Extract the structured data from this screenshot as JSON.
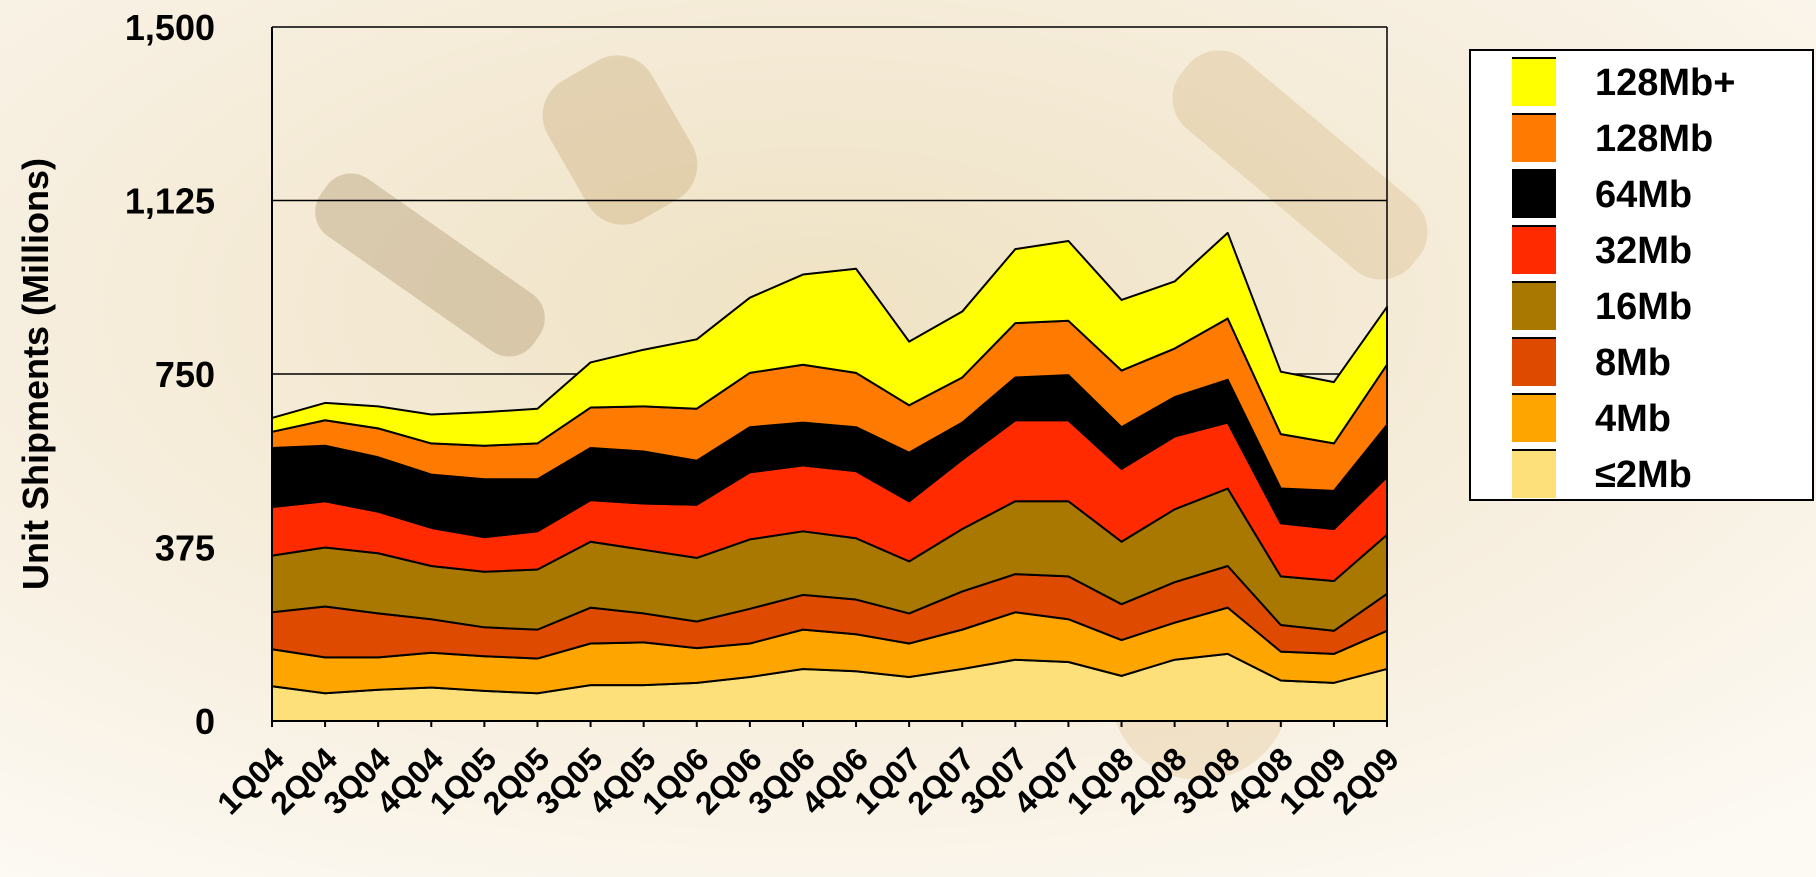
{
  "chart_data": {
    "type": "stacked_area",
    "y_label": "Unit Shipments (Millions)",
    "categories": [
      "1Q04",
      "2Q04",
      "3Q04",
      "4Q04",
      "1Q05",
      "2Q05",
      "3Q05",
      "4Q05",
      "1Q06",
      "2Q06",
      "3Q06",
      "4Q06",
      "1Q07",
      "2Q07",
      "3Q07",
      "4Q07",
      "1Q08",
      "2Q08",
      "3Q08",
      "4Q08",
      "1Q09",
      "2Q09"
    ],
    "series": [
      {
        "name": "≤2Mb",
        "color": "#fde07a",
        "values": [
          75,
          60,
          67.5,
          72.5,
          65,
          60,
          77.5,
          77.5,
          82.5,
          95,
          112.5,
          107.5,
          95,
          112.5,
          132.5,
          127.5,
          97.5,
          132.5,
          145,
          87.5,
          82.5,
          112.5
        ]
      },
      {
        "name": "4Mb",
        "color": "#ffa500",
        "values": [
          80,
          77.5,
          70,
          75,
          75,
          75,
          90,
          92.5,
          75,
          72.5,
          85,
          80,
          72.5,
          85,
          102.5,
          92.5,
          77.5,
          80,
          100,
          62.5,
          62.5,
          82.5
        ]
      },
      {
        "name": "8Mb",
        "color": "#dd4a00",
        "values": [
          80,
          110,
          95,
          72.5,
          62.5,
          62.5,
          77.5,
          62.5,
          57.5,
          75,
          75,
          75,
          65,
          82.5,
          82.5,
          92.5,
          77.5,
          87.5,
          90,
          57.5,
          50,
          80
        ]
      },
      {
        "name": "16Mb",
        "color": "#a87800",
        "values": [
          122.5,
          127.5,
          130,
          115,
          120,
          130,
          142.5,
          137.5,
          137.5,
          150,
          137.5,
          132.5,
          112.5,
          135,
          157.5,
          162.5,
          135,
          157.5,
          167.5,
          105,
          107.5,
          127.5
        ]
      },
      {
        "name": "32Mb",
        "color": "#ff2a00",
        "values": [
          105,
          100,
          90,
          82.5,
          75,
          82.5,
          90,
          100,
          115,
          145,
          142.5,
          145,
          130,
          150,
          175,
          175,
          157.5,
          157.5,
          142.5,
          115,
          112.5,
          125
        ]
      },
      {
        "name": "64Mb",
        "color": "#000000",
        "values": [
          127.5,
          120,
          117.5,
          115,
          125,
          112.5,
          112.5,
          112.5,
          95,
          97.5,
          92.5,
          95,
          105,
          80,
          92.5,
          97.5,
          90,
          85,
          92.5,
          75,
          82.5,
          112.5
        ]
      },
      {
        "name": "128Mb",
        "color": "#ff7a00",
        "values": [
          35,
          55,
          62.5,
          67.5,
          72.5,
          77.5,
          87.5,
          97.5,
          112.5,
          117.5,
          125,
          117.5,
          102.5,
          97.5,
          117.5,
          117.5,
          122.5,
          105,
          132.5,
          117.5,
          102.5,
          130
        ]
      },
      {
        "name": "128Mb+",
        "color": "#ffff00",
        "values": [
          30,
          37.5,
          47.5,
          62.5,
          72.5,
          75,
          97.5,
          122.5,
          150,
          162.5,
          195,
          225,
          137.5,
          142.5,
          160,
          172.5,
          152.5,
          145,
          185,
          135,
          132.5,
          125
        ]
      }
    ],
    "ylim": [
      0,
      1500
    ],
    "yticks": [
      0,
      375,
      750,
      {
        "value": 1125,
        "label": "1,125"
      },
      {
        "value": 1500,
        "label": "1,500"
      }
    ],
    "grid": true,
    "legend": "right"
  }
}
